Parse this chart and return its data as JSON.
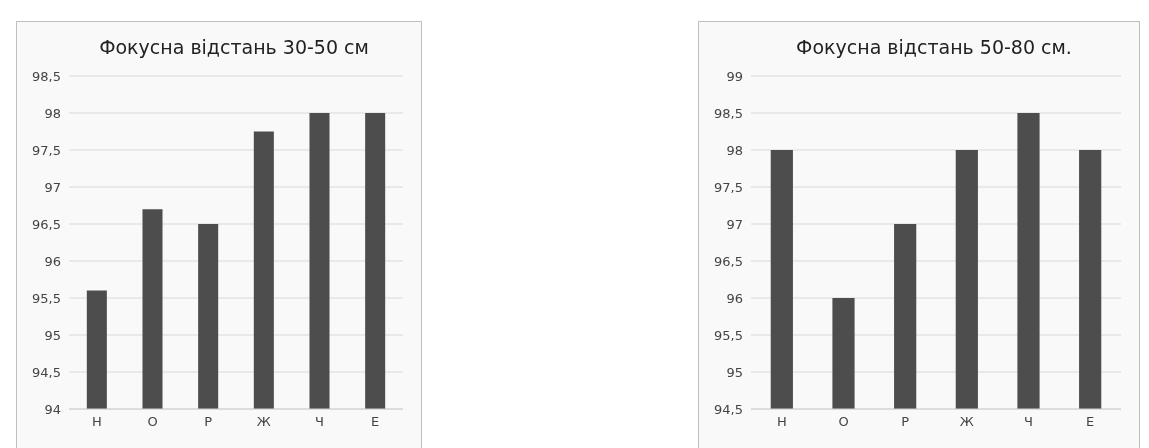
{
  "chart_data": [
    {
      "type": "bar",
      "title": "Фокусна відстань 30-50 см",
      "categories": [
        "Н",
        "О",
        "Р",
        "Ж",
        "Ч",
        "Е"
      ],
      "values": [
        95.6,
        96.7,
        96.5,
        97.75,
        98,
        98
      ],
      "color": "#4d4d4d",
      "ylim": [
        94,
        98.5
      ],
      "yticks": [
        94,
        {
          "value": 94.5,
          "label": "94,5"
        },
        95,
        {
          "value": 95.5,
          "label": "95,5"
        },
        96,
        {
          "value": 96.5,
          "label": "96,5"
        },
        97,
        {
          "value": 97.5,
          "label": "97,5"
        },
        98,
        {
          "value": 98.5,
          "label": "98,5"
        }
      ],
      "grid": "y"
    },
    {
      "type": "bar",
      "title": "Фокусна відстань 50-80 см.",
      "categories": [
        "Н",
        "О",
        "Р",
        "Ж",
        "Ч",
        "Е"
      ],
      "values": [
        98,
        96,
        97,
        98,
        98.5,
        98
      ],
      "color": "#4d4d4d",
      "ylim": [
        94.5,
        99
      ],
      "yticks": [
        {
          "value": 94.5,
          "label": "94,5"
        },
        95,
        {
          "value": 95.5,
          "label": "95,5"
        },
        96,
        {
          "value": 96.5,
          "label": "96,5"
        },
        97,
        {
          "value": 97.5,
          "label": "97,5"
        },
        98,
        {
          "value": 98.5,
          "label": "98,5"
        },
        99
      ],
      "grid": "y"
    }
  ]
}
